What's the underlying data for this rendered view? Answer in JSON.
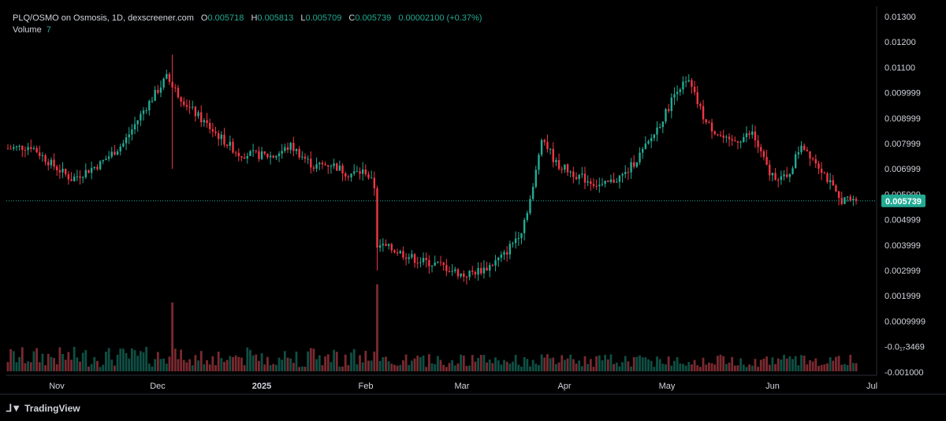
{
  "legend": {
    "pair": "PLQ/OSMO on Osmosis, 1D, dexscreener.com",
    "o_label": "O",
    "o_value": "0.005718",
    "h_label": "H",
    "h_value": "0.005813",
    "l_label": "L",
    "l_value": "0.005709",
    "c_label": "C",
    "c_value": "0.005739",
    "change": "0.00002100 (+0.37%)",
    "volume_label": "Volume",
    "volume_value": "7"
  },
  "brand": {
    "name": "TradingView",
    "logo": "tradingview-logo"
  },
  "colors": {
    "up": "#22ab94",
    "down": "#f23645",
    "up_volume": "#0f4f44",
    "down_volume": "#7a2a30",
    "last_price": "#22ab94",
    "background": "#000000"
  },
  "chart_data": {
    "type": "candlestick",
    "y_axis_labels": [
      "0.01300",
      "0.01200",
      "0.01100",
      "0.009999",
      "0.008999",
      "0.007999",
      "0.006999",
      "0.005999",
      "0.004999",
      "0.003999",
      "0.002999",
      "0.001999",
      "0.0009999",
      "-0.0₁₇3469",
      "-0.001000"
    ],
    "y_axis_values": [
      0.013,
      0.012,
      0.011,
      0.01,
      0.009,
      0.008,
      0.007,
      0.006,
      0.005,
      0.004,
      0.003,
      0.002,
      0.001,
      0.0,
      -0.001
    ],
    "x_axis_labels": [
      "Nov",
      "Dec",
      "2025",
      "Feb",
      "Mar",
      "Apr",
      "May",
      "Jun",
      "Jul"
    ],
    "last_price_label": "0.005739",
    "last_price": 0.005739,
    "ohlc_keypoints": [
      {
        "d": 0,
        "p": 0.0078
      },
      {
        "d": 8,
        "p": 0.0079
      },
      {
        "d": 15,
        "p": 0.0072
      },
      {
        "d": 22,
        "p": 0.0066
      },
      {
        "d": 32,
        "p": 0.0072
      },
      {
        "d": 40,
        "p": 0.008
      },
      {
        "d": 47,
        "p": 0.0093
      },
      {
        "d": 55,
        "p": 0.0106
      },
      {
        "d": 58,
        "p": 0.0101
      },
      {
        "d": 63,
        "p": 0.0094
      },
      {
        "d": 72,
        "p": 0.0084
      },
      {
        "d": 80,
        "p": 0.0076
      },
      {
        "d": 92,
        "p": 0.0075
      },
      {
        "d": 98,
        "p": 0.0079
      },
      {
        "d": 106,
        "p": 0.0071
      },
      {
        "d": 112,
        "p": 0.0072
      },
      {
        "d": 118,
        "p": 0.0068
      },
      {
        "d": 124,
        "p": 0.0069
      },
      {
        "d": 127,
        "p": 0.0063
      },
      {
        "d": 128,
        "p": 0.004
      },
      {
        "d": 134,
        "p": 0.0038
      },
      {
        "d": 142,
        "p": 0.0034
      },
      {
        "d": 150,
        "p": 0.0032
      },
      {
        "d": 158,
        "p": 0.0028
      },
      {
        "d": 166,
        "p": 0.0031
      },
      {
        "d": 172,
        "p": 0.0036
      },
      {
        "d": 178,
        "p": 0.0046
      },
      {
        "d": 182,
        "p": 0.0062
      },
      {
        "d": 185,
        "p": 0.0083
      },
      {
        "d": 190,
        "p": 0.0072
      },
      {
        "d": 198,
        "p": 0.0067
      },
      {
        "d": 206,
        "p": 0.0063
      },
      {
        "d": 214,
        "p": 0.0068
      },
      {
        "d": 222,
        "p": 0.008
      },
      {
        "d": 228,
        "p": 0.0092
      },
      {
        "d": 232,
        "p": 0.0102
      },
      {
        "d": 236,
        "p": 0.0104
      },
      {
        "d": 242,
        "p": 0.0088
      },
      {
        "d": 250,
        "p": 0.008
      },
      {
        "d": 258,
        "p": 0.0084
      },
      {
        "d": 264,
        "p": 0.0068
      },
      {
        "d": 270,
        "p": 0.0066
      },
      {
        "d": 275,
        "p": 0.008
      },
      {
        "d": 282,
        "p": 0.007
      },
      {
        "d": 288,
        "p": 0.0058
      },
      {
        "d": 294,
        "p": 0.005739
      }
    ],
    "volume_spikes": [
      {
        "d": 57,
        "v": 9.5
      },
      {
        "d": 128,
        "v": 12
      }
    ],
    "grid": false,
    "legend_position": "top-left"
  }
}
